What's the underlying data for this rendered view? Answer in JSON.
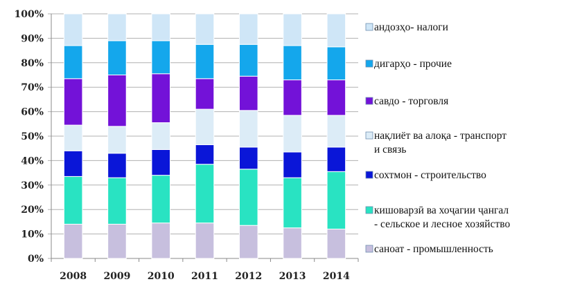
{
  "chart_data": {
    "type": "bar",
    "stacked": true,
    "percent": true,
    "title": "",
    "xlabel": "",
    "ylabel": "",
    "ylim": [
      0,
      100
    ],
    "yticks": [
      "0%",
      "10%",
      "20%",
      "30%",
      "40%",
      "50%",
      "60%",
      "70%",
      "80%",
      "90%",
      "100%"
    ],
    "categories": [
      "2008",
      "2009",
      "2010",
      "2011",
      "2012",
      "2013",
      "2014"
    ],
    "grid": true,
    "legend": "right",
    "series": [
      {
        "name": "саноат - промышленность",
        "color": "#c7bfde",
        "values": [
          14,
          14,
          14.5,
          14.5,
          13.5,
          12.5,
          12
        ]
      },
      {
        "name": "кишоварзӣ ва хоҷагии ҷангал - сельское и лесное хозяйство",
        "color": "#29e3c2",
        "values": [
          19.5,
          19,
          19.5,
          24,
          23,
          20.5,
          23.5
        ]
      },
      {
        "name": "сохтмон - строительство",
        "color": "#0a16d8",
        "values": [
          10.5,
          10,
          10.5,
          8,
          9,
          10.5,
          10
        ]
      },
      {
        "name": "нақлиёт ва алоқа - транспорт и связь",
        "color": "#dcecf7",
        "values": [
          10.5,
          11,
          11,
          14.5,
          15,
          15,
          13
        ]
      },
      {
        "name": "савдо - торговля",
        "color": "#7312d8",
        "values": [
          19,
          21,
          20,
          12.5,
          14,
          14.5,
          14.5
        ]
      },
      {
        "name": "дигарҳо - прочие",
        "color": "#14a7ec",
        "values": [
          13.5,
          14,
          13.5,
          14,
          13,
          14,
          13.5
        ]
      },
      {
        "name": "андозҳо- налоги",
        "color": "#cfe6f7",
        "values": [
          13,
          11,
          11,
          12.5,
          12.5,
          13,
          13.5
        ]
      }
    ]
  },
  "legend_items": [
    {
      "lines": [
        "андозҳо- налоги"
      ],
      "color": "#cfe6f7"
    },
    {
      "lines": [
        "дигарҳо - прочие"
      ],
      "color": "#14a7ec"
    },
    {
      "lines": [
        "савдо - торговля"
      ],
      "color": "#7312d8"
    },
    {
      "lines": [
        "нақлиёт ва алоқа - транспорт",
        "и связь"
      ],
      "color": "#dcecf7"
    },
    {
      "lines": [
        "сохтмон - строительство"
      ],
      "color": "#0a16d8"
    },
    {
      "lines": [
        "кишоварзӣ ва хоҷагии ҷангал",
        "- сельское и лесное хозяйство"
      ],
      "color": "#29e3c2"
    },
    {
      "lines": [
        "саноат - промышленность"
      ],
      "color": "#c7bfde"
    }
  ]
}
